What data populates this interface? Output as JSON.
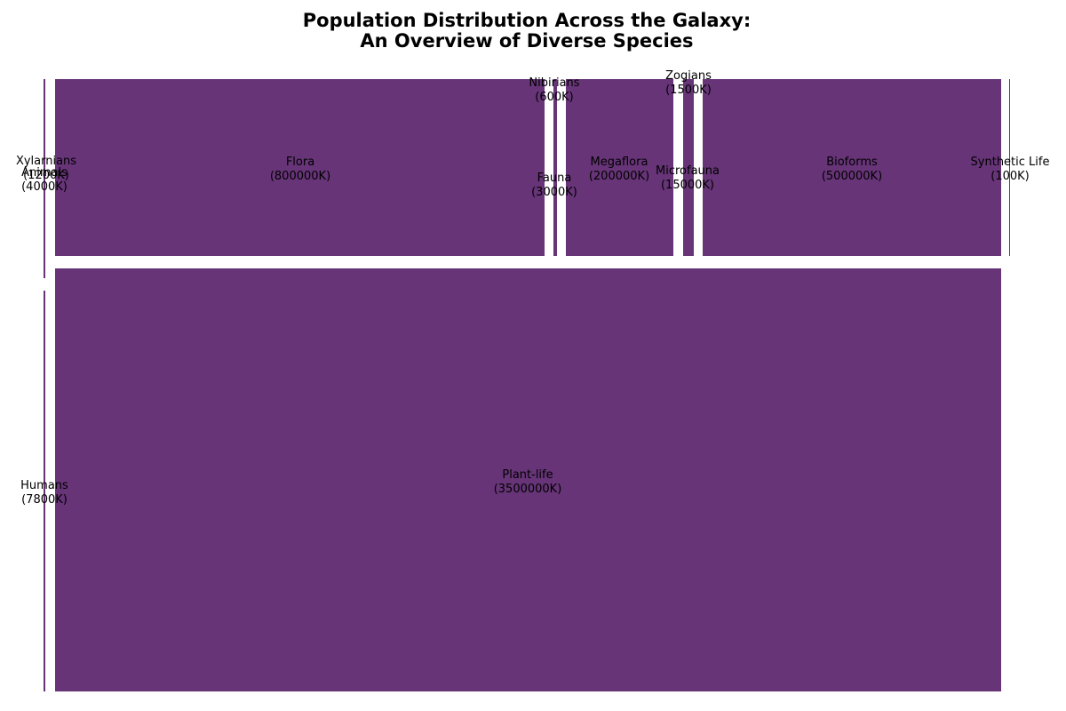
{
  "title_lines": [
    "Population Distribution Across the Galaxy:",
    "An Overview of Diverse Species"
  ],
  "chart_data": {
    "type": "treemap",
    "title": "Population Distribution Across the Galaxy:\nAn Overview of Diverse Species",
    "fill_color": "#663477",
    "edge_color": "#ffffff",
    "unit_suffix": "K",
    "groups": [
      {
        "name": "Humans",
        "value": 7800,
        "children": [
          {
            "name": "Xylarnians",
            "value": 1200
          },
          {
            "name": "Animals",
            "value": 4000
          }
        ]
      },
      {
        "name": "Plant-life",
        "value": 3500000,
        "children": [
          {
            "name": "Flora",
            "value": 800000
          },
          {
            "name": "Nibirians",
            "value": 600
          },
          {
            "name": "Fauna",
            "value": 3000
          },
          {
            "name": "Megaflora",
            "value": 200000
          },
          {
            "name": "Zogians",
            "value": 1500
          },
          {
            "name": "Microfauna",
            "value": 15000
          },
          {
            "name": "Bioforms",
            "value": 500000
          }
        ]
      },
      {
        "name": "Synthetic Life",
        "value": 100,
        "children": []
      }
    ]
  }
}
